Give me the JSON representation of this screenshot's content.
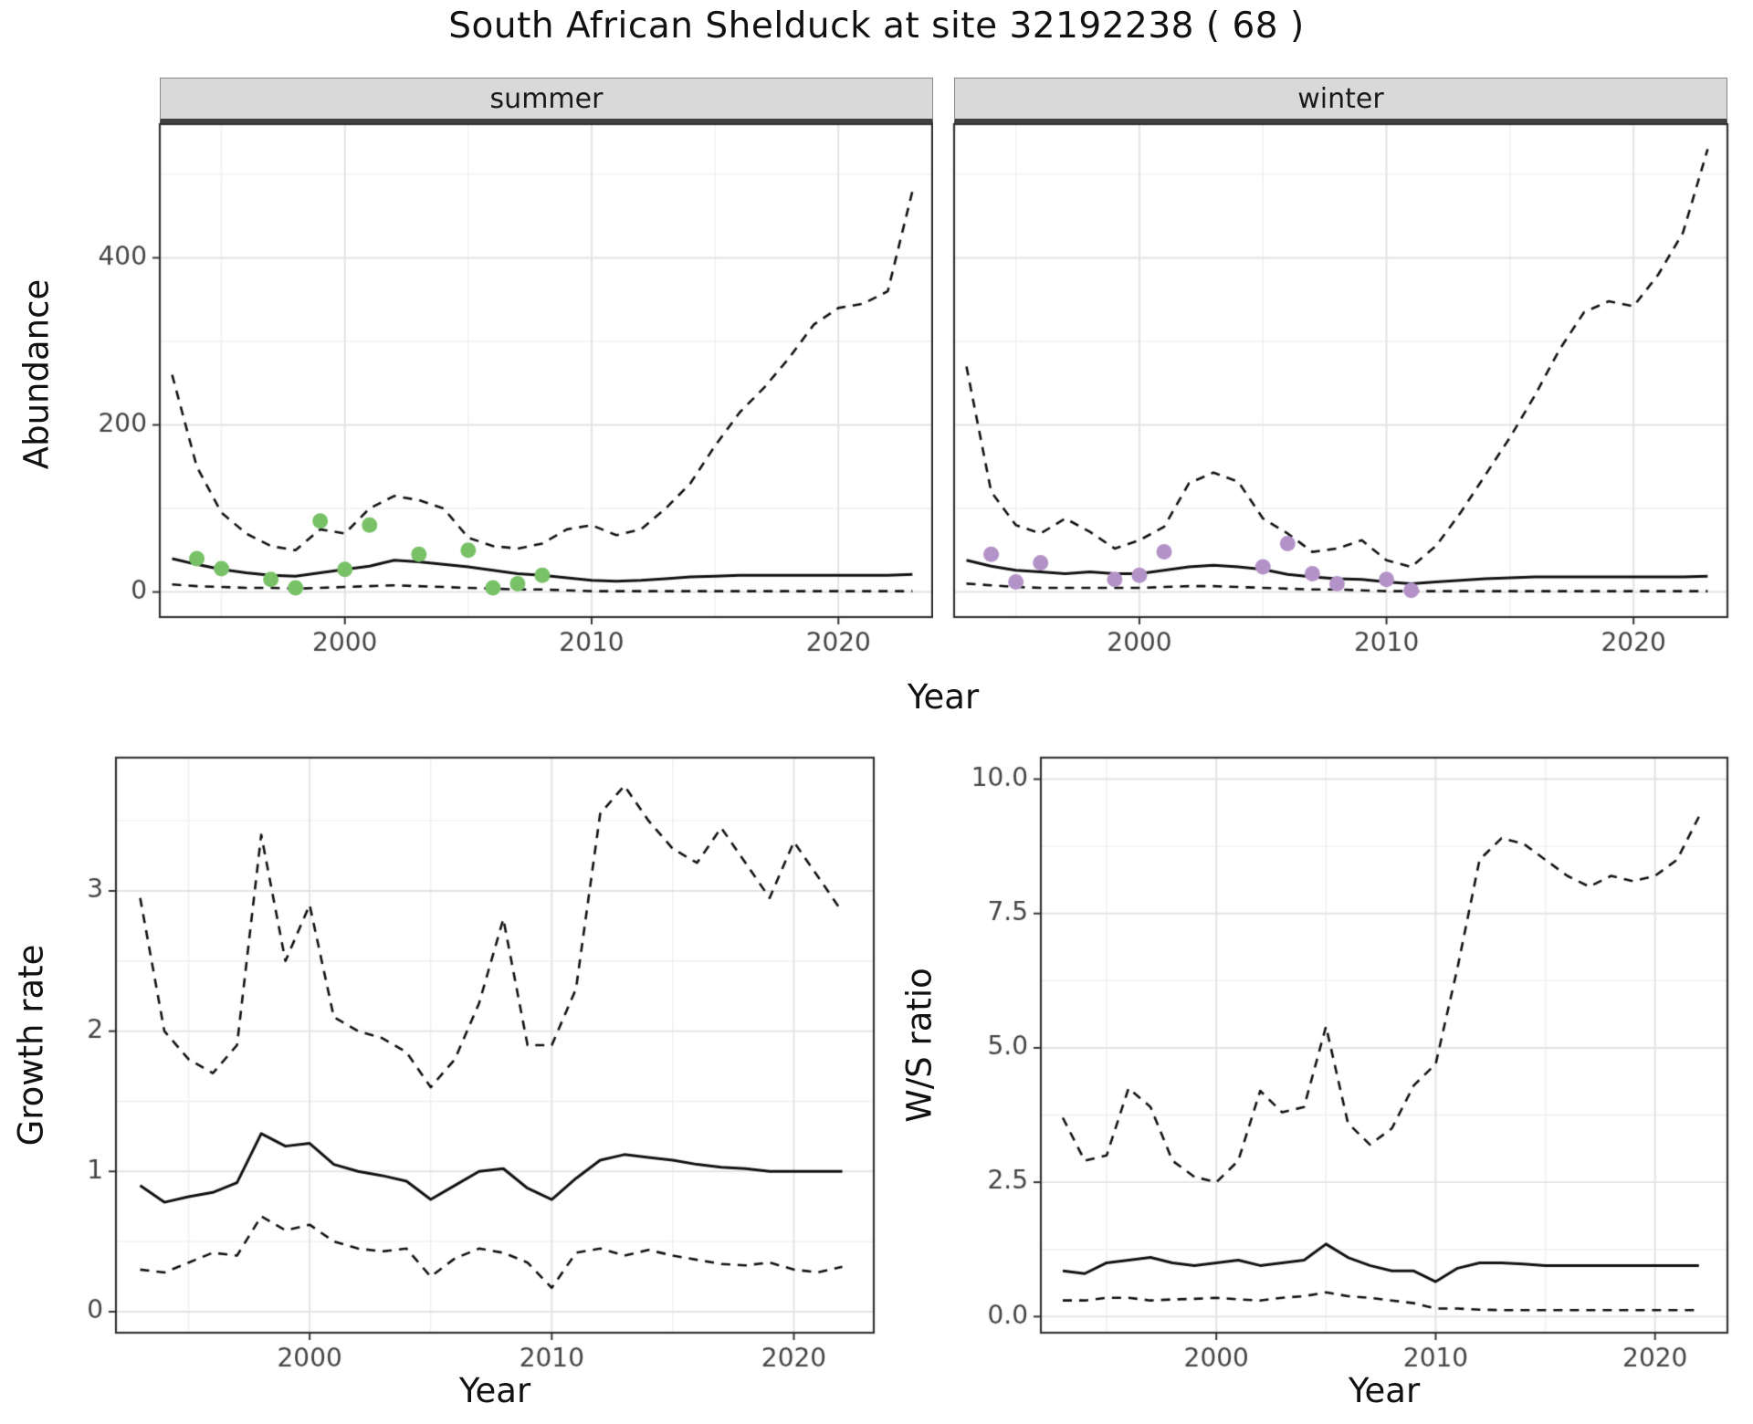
{
  "title": "South African Shelduck at site 32192238 ( 68 )",
  "facets": {
    "summer": "summer",
    "winter": "winter"
  },
  "axis_labels": {
    "abundance": "Abundance",
    "year": "Year",
    "growth_rate": "Growth rate",
    "ws_ratio": "W/S ratio"
  },
  "colors": {
    "summer_points": "#78c167",
    "winter_points": "#b392c7",
    "line": "#111111",
    "grid_major": "#e3e3e3",
    "grid_minor": "#f0f0f0",
    "panel_border": "#333333",
    "strip_bg": "#d9d9d9"
  },
  "chart_data": [
    {
      "type": "line",
      "panel": "summer",
      "title": "summer",
      "xlabel": "Year",
      "ylabel": "Abundance",
      "xlim": [
        1992.5,
        2023.8
      ],
      "ylim": [
        -30,
        560
      ],
      "xticks": [
        2000,
        2010,
        2020
      ],
      "xtick_labels": [
        "2000",
        "2010",
        "2020"
      ],
      "yticks": [
        0,
        200,
        400
      ],
      "ytick_labels": [
        "0",
        "200",
        "400"
      ],
      "x": [
        1993,
        1994,
        1995,
        1996,
        1997,
        1998,
        1999,
        2000,
        2001,
        2002,
        2003,
        2004,
        2005,
        2006,
        2007,
        2008,
        2009,
        2010,
        2011,
        2012,
        2013,
        2014,
        2015,
        2016,
        2017,
        2018,
        2019,
        2020,
        2021,
        2022,
        2023
      ],
      "series": [
        {
          "name": "upper_95ci",
          "style": "dashed",
          "values": [
            260,
            150,
            95,
            70,
            55,
            50,
            75,
            70,
            100,
            115,
            110,
            100,
            65,
            55,
            52,
            58,
            75,
            80,
            68,
            75,
            100,
            130,
            175,
            215,
            245,
            280,
            320,
            340,
            345,
            360,
            480
          ]
        },
        {
          "name": "median",
          "style": "solid",
          "values": [
            40,
            33,
            27,
            23,
            20,
            19,
            23,
            27,
            31,
            38,
            36,
            33,
            30,
            26,
            22,
            20,
            17,
            14,
            13,
            14,
            16,
            18,
            19,
            20,
            20,
            20,
            20,
            20,
            20,
            20,
            21
          ]
        },
        {
          "name": "lower_95ci",
          "style": "dashed",
          "values": [
            9,
            7,
            6,
            5,
            5,
            4,
            5,
            6,
            7,
            8,
            7,
            6,
            5,
            4,
            3,
            3,
            2,
            1,
            1,
            1,
            1,
            1,
            1,
            1,
            1,
            1,
            1,
            1,
            1,
            1,
            1
          ]
        }
      ],
      "points": {
        "name": "observed_counts_summer",
        "color": "#78c167",
        "x": [
          1994,
          1995,
          1997,
          1998,
          1999,
          2000,
          2001,
          2003,
          2005,
          2006,
          2007,
          2008
        ],
        "y": [
          40,
          28,
          15,
          5,
          85,
          27,
          80,
          45,
          50,
          5,
          10,
          20
        ]
      }
    },
    {
      "type": "line",
      "panel": "winter",
      "title": "winter",
      "xlabel": "Year",
      "ylabel": "Abundance",
      "xlim": [
        1992.5,
        2023.8
      ],
      "ylim": [
        -30,
        560
      ],
      "xticks": [
        2000,
        2010,
        2020
      ],
      "xtick_labels": [
        "2000",
        "2010",
        "2020"
      ],
      "yticks": [
        0,
        200,
        400
      ],
      "ytick_labels": [
        "0",
        "200",
        "400"
      ],
      "x": [
        1993,
        1994,
        1995,
        1996,
        1997,
        1998,
        1999,
        2000,
        2001,
        2002,
        2003,
        2004,
        2005,
        2006,
        2007,
        2008,
        2009,
        2010,
        2011,
        2012,
        2013,
        2014,
        2015,
        2016,
        2017,
        2018,
        2019,
        2020,
        2021,
        2022,
        2023
      ],
      "series": [
        {
          "name": "upper_95ci",
          "style": "dashed",
          "values": [
            270,
            120,
            80,
            70,
            88,
            72,
            52,
            62,
            78,
            130,
            143,
            132,
            88,
            70,
            48,
            52,
            62,
            38,
            30,
            55,
            95,
            140,
            185,
            235,
            290,
            335,
            348,
            342,
            380,
            430,
            530
          ]
        },
        {
          "name": "median",
          "style": "solid",
          "values": [
            38,
            31,
            26,
            24,
            22,
            24,
            22,
            22,
            26,
            30,
            32,
            30,
            27,
            21,
            18,
            16,
            15,
            12,
            10,
            12,
            14,
            16,
            17,
            18,
            18,
            18,
            18,
            18,
            18,
            18,
            19
          ]
        },
        {
          "name": "lower_95ci",
          "style": "dashed",
          "values": [
            10,
            8,
            6,
            5,
            5,
            5,
            5,
            5,
            6,
            7,
            7,
            6,
            5,
            4,
            3,
            3,
            2,
            1,
            1,
            1,
            1,
            1,
            1,
            1,
            1,
            1,
            1,
            1,
            1,
            1,
            1
          ]
        }
      ],
      "points": {
        "name": "observed_counts_winter",
        "color": "#b392c7",
        "x": [
          1994,
          1995,
          1996,
          1999,
          2000,
          2001,
          2005,
          2006,
          2007,
          2008,
          2010,
          2011
        ],
        "y": [
          45,
          12,
          35,
          15,
          20,
          48,
          30,
          58,
          22,
          10,
          15,
          2
        ]
      }
    },
    {
      "type": "line",
      "panel": "growth-rate",
      "title": "Growth rate",
      "xlabel": "Year",
      "ylabel": "Growth rate",
      "xlim": [
        1992,
        2023.3
      ],
      "ylim": [
        -0.15,
        3.95
      ],
      "xticks": [
        2000,
        2010,
        2020
      ],
      "xtick_labels": [
        "2000",
        "2010",
        "2020"
      ],
      "yticks": [
        0,
        1,
        2,
        3
      ],
      "ytick_labels": [
        "0",
        "1",
        "2",
        "3"
      ],
      "x": [
        1993,
        1994,
        1995,
        1996,
        1997,
        1998,
        1999,
        2000,
        2001,
        2002,
        2003,
        2004,
        2005,
        2006,
        2007,
        2008,
        2009,
        2010,
        2011,
        2012,
        2013,
        2014,
        2015,
        2016,
        2017,
        2018,
        2019,
        2020,
        2021,
        2022
      ],
      "series": [
        {
          "name": "upper_95ci",
          "style": "dashed",
          "values": [
            2.95,
            2.0,
            1.8,
            1.7,
            1.9,
            3.4,
            2.5,
            2.9,
            2.1,
            2.0,
            1.95,
            1.85,
            1.6,
            1.8,
            2.2,
            2.8,
            1.9,
            1.9,
            2.3,
            3.55,
            3.75,
            3.5,
            3.3,
            3.2,
            3.45,
            3.2,
            2.95,
            3.35,
            3.1,
            2.85
          ]
        },
        {
          "name": "median",
          "style": "solid",
          "values": [
            0.9,
            0.78,
            0.82,
            0.85,
            0.92,
            1.27,
            1.18,
            1.2,
            1.05,
            1.0,
            0.97,
            0.93,
            0.8,
            0.9,
            1.0,
            1.02,
            0.88,
            0.8,
            0.95,
            1.08,
            1.12,
            1.1,
            1.08,
            1.05,
            1.03,
            1.02,
            1.0,
            1.0,
            1.0,
            1.0
          ]
        },
        {
          "name": "lower_95ci",
          "style": "dashed",
          "values": [
            0.3,
            0.28,
            0.35,
            0.42,
            0.4,
            0.68,
            0.58,
            0.62,
            0.5,
            0.45,
            0.43,
            0.45,
            0.25,
            0.38,
            0.45,
            0.42,
            0.35,
            0.17,
            0.42,
            0.45,
            0.4,
            0.44,
            0.4,
            0.37,
            0.34,
            0.33,
            0.35,
            0.3,
            0.28,
            0.32
          ]
        }
      ]
    },
    {
      "type": "line",
      "panel": "ws-ratio",
      "title": "W/S ratio",
      "xlabel": "Year",
      "ylabel": "W/S ratio",
      "xlim": [
        1992,
        2023.3
      ],
      "ylim": [
        -0.3,
        10.4
      ],
      "xticks": [
        2000,
        2010,
        2020
      ],
      "xtick_labels": [
        "2000",
        "2010",
        "2020"
      ],
      "yticks": [
        0,
        2.5,
        5,
        7.5,
        10
      ],
      "ytick_labels": [
        "0.0",
        "2.5",
        "5.0",
        "7.5",
        "10.0"
      ],
      "x": [
        1993,
        1994,
        1995,
        1996,
        1997,
        1998,
        1999,
        2000,
        2001,
        2002,
        2003,
        2004,
        2005,
        2006,
        2007,
        2008,
        2009,
        2010,
        2011,
        2012,
        2013,
        2014,
        2015,
        2016,
        2017,
        2018,
        2019,
        2020,
        2021,
        2022
      ],
      "series": [
        {
          "name": "upper_95ci",
          "style": "dashed",
          "values": [
            3.7,
            2.9,
            3.0,
            4.25,
            3.9,
            2.9,
            2.6,
            2.5,
            2.9,
            4.2,
            3.8,
            3.9,
            5.4,
            3.6,
            3.2,
            3.5,
            4.3,
            4.7,
            6.5,
            8.5,
            8.9,
            8.8,
            8.5,
            8.2,
            8.0,
            8.2,
            8.1,
            8.2,
            8.5,
            9.3
          ]
        },
        {
          "name": "median",
          "style": "solid",
          "values": [
            0.85,
            0.8,
            1.0,
            1.05,
            1.1,
            1.0,
            0.95,
            1.0,
            1.05,
            0.95,
            1.0,
            1.05,
            1.35,
            1.1,
            0.95,
            0.85,
            0.85,
            0.65,
            0.9,
            1.0,
            1.0,
            0.98,
            0.95,
            0.95,
            0.95,
            0.95,
            0.95,
            0.95,
            0.95,
            0.95
          ]
        },
        {
          "name": "lower_95ci",
          "style": "dashed",
          "values": [
            0.3,
            0.3,
            0.35,
            0.35,
            0.3,
            0.32,
            0.33,
            0.35,
            0.32,
            0.3,
            0.35,
            0.38,
            0.45,
            0.38,
            0.35,
            0.3,
            0.25,
            0.15,
            0.15,
            0.13,
            0.12,
            0.12,
            0.12,
            0.12,
            0.12,
            0.12,
            0.12,
            0.12,
            0.12,
            0.12
          ]
        }
      ]
    }
  ]
}
